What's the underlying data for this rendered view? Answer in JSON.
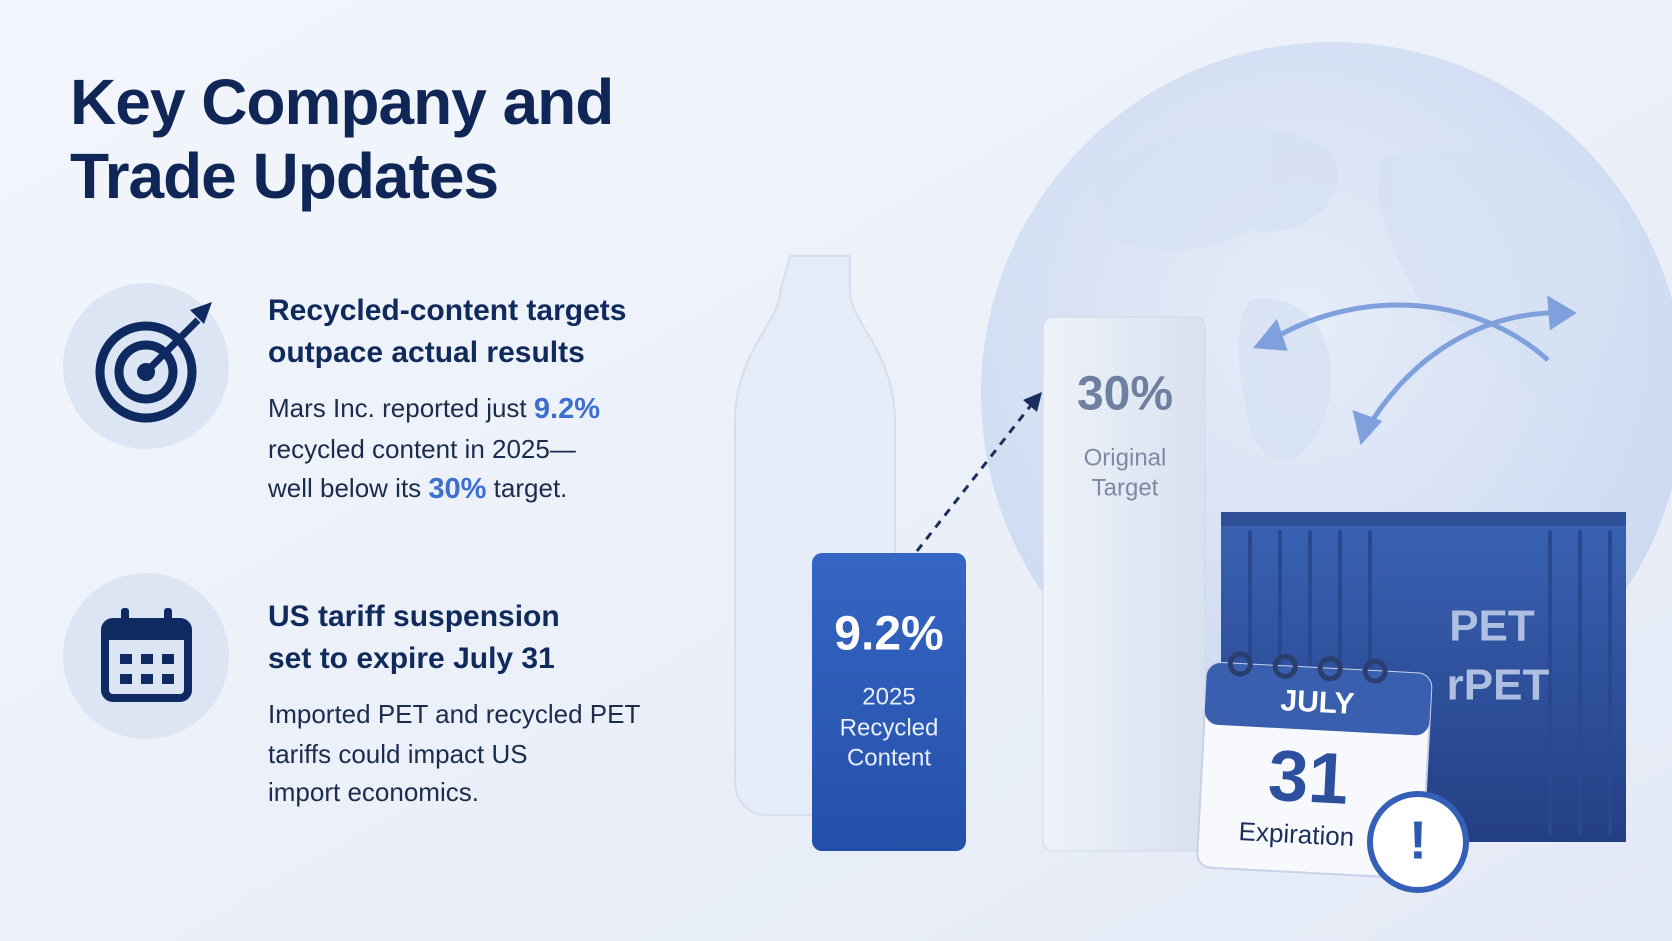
{
  "header": {
    "title": [
      "Key Company and",
      "Trade Updates"
    ]
  },
  "items": [
    {
      "heading": [
        "Recycled-content targets",
        "outpace actual results"
      ],
      "body": [
        [
          "Mars Inc. reported just ",
          "9.2%"
        ],
        [
          "recycled content in 2025—"
        ],
        [
          "well below its ",
          "30%",
          " target."
        ]
      ]
    },
    {
      "heading": [
        "US tariff suspension",
        "set to expire July 31"
      ],
      "body": [
        [
          "Imported PET and recycled PET"
        ],
        [
          "tariffs could impact US"
        ],
        [
          "import economics."
        ]
      ]
    }
  ],
  "illustration": {
    "bar_current": {
      "value": "9.2%",
      "label": [
        "2025",
        "Recycled",
        "Content"
      ]
    },
    "bar_target": {
      "value": "30%",
      "label": [
        "Original",
        "Target"
      ]
    },
    "container": {
      "labels": [
        "PET",
        "rPET"
      ]
    },
    "calendar": {
      "month": "JULY",
      "day": "31",
      "caption": "Expiration",
      "alert": "!"
    }
  }
}
